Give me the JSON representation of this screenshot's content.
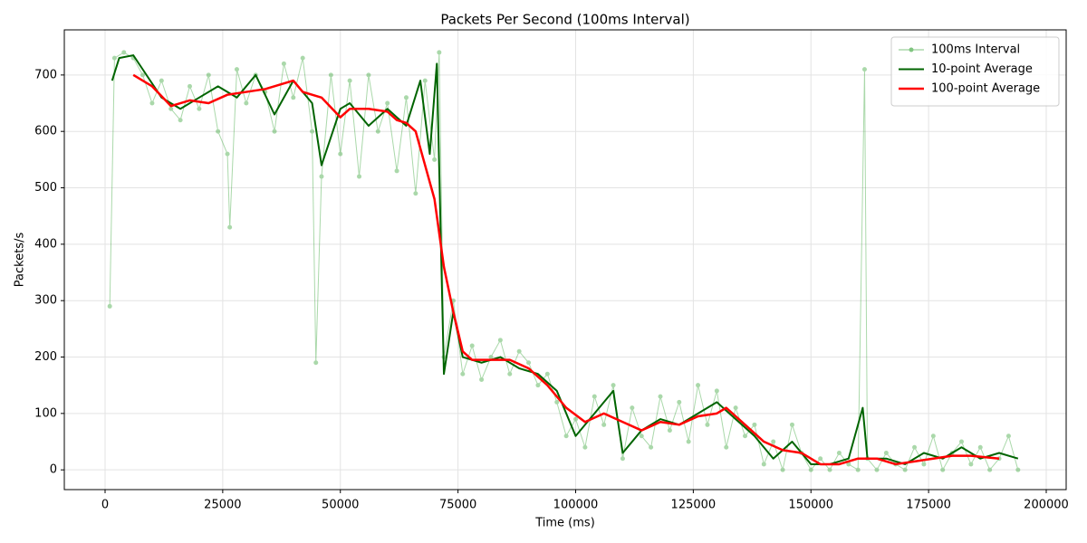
{
  "chart_data": {
    "type": "line",
    "title": "Packets Per Second (100ms Interval)",
    "x_label": "Time (ms)",
    "y_label": "Packets/s",
    "xlim": [
      -8660,
      204235
    ],
    "xticks": [
      0,
      25000,
      50000,
      75000,
      100000,
      125000,
      150000,
      175000,
      200000
    ],
    "ylim": [
      -35,
      780
    ],
    "yticks": [
      0,
      100,
      200,
      300,
      400,
      500,
      600,
      700
    ],
    "grid": true,
    "legend": "upper-right",
    "series": [
      {
        "name": "100ms Interval",
        "color": "#2ca02c",
        "alpha": 0.4,
        "linewidth": 1,
        "marker": true,
        "x": [
          1000,
          2000,
          4000,
          6000,
          8000,
          10000,
          12000,
          14000,
          16000,
          18000,
          20000,
          22000,
          24000,
          26000,
          26500,
          28000,
          30000,
          32000,
          34000,
          36000,
          38000,
          40000,
          42000,
          44000,
          44800,
          46000,
          48000,
          50000,
          52000,
          54000,
          56000,
          58000,
          60000,
          62000,
          64000,
          66000,
          68000,
          70000,
          71000,
          72000,
          74000,
          76000,
          78000,
          80000,
          82000,
          84000,
          86000,
          88000,
          90000,
          92000,
          94000,
          96000,
          98000,
          100000,
          102000,
          104000,
          106000,
          108000,
          110000,
          112000,
          114000,
          116000,
          118000,
          120000,
          122000,
          124000,
          126000,
          128000,
          130000,
          132000,
          134000,
          136000,
          138000,
          140000,
          142000,
          144000,
          146000,
          148000,
          150000,
          152000,
          154000,
          156000,
          158000,
          160000,
          161400,
          162000,
          164000,
          166000,
          168000,
          170000,
          172000,
          174000,
          176000,
          178000,
          180000,
          182000,
          184000,
          186000,
          188000,
          190000,
          192000,
          194000
        ],
        "values": [
          290,
          730,
          740,
          730,
          700,
          650,
          690,
          640,
          620,
          680,
          640,
          700,
          600,
          560,
          430,
          710,
          650,
          700,
          670,
          600,
          720,
          660,
          730,
          600,
          190,
          520,
          700,
          560,
          690,
          520,
          700,
          600,
          650,
          530,
          660,
          490,
          690,
          550,
          740,
          200,
          300,
          170,
          220,
          160,
          200,
          230,
          170,
          210,
          190,
          150,
          170,
          120,
          60,
          90,
          40,
          130,
          80,
          150,
          20,
          110,
          60,
          40,
          130,
          70,
          120,
          50,
          150,
          80,
          140,
          40,
          110,
          60,
          80,
          10,
          50,
          0,
          80,
          30,
          0,
          20,
          0,
          30,
          10,
          0,
          710,
          20,
          0,
          30,
          10,
          0,
          40,
          10,
          60,
          0,
          30,
          50,
          10,
          40,
          0,
          20,
          60,
          0
        ]
      },
      {
        "name": "10-point Average",
        "color": "#006400",
        "alpha": 1,
        "linewidth": 2,
        "marker": false,
        "x": [
          1500,
          3000,
          6000,
          8000,
          12000,
          16000,
          20000,
          24000,
          28000,
          32000,
          36000,
          40000,
          44000,
          46000,
          50000,
          52000,
          56000,
          60000,
          64000,
          67000,
          69000,
          70500,
          72000,
          74000,
          76000,
          80000,
          84000,
          88000,
          92000,
          96000,
          100000,
          104000,
          108000,
          110000,
          114000,
          118000,
          122000,
          126000,
          130000,
          134000,
          138000,
          142000,
          146000,
          150000,
          154000,
          158000,
          161000,
          162000,
          166000,
          170000,
          174000,
          178000,
          182000,
          186000,
          190000,
          194000
        ],
        "values": [
          690,
          730,
          735,
          710,
          660,
          640,
          660,
          680,
          660,
          700,
          630,
          690,
          650,
          540,
          640,
          650,
          610,
          640,
          610,
          690,
          560,
          720,
          170,
          280,
          200,
          190,
          200,
          180,
          170,
          140,
          60,
          100,
          140,
          30,
          70,
          90,
          80,
          100,
          120,
          90,
          60,
          20,
          50,
          10,
          10,
          20,
          110,
          20,
          20,
          10,
          30,
          20,
          40,
          20,
          30,
          20
        ]
      },
      {
        "name": "100-point Average",
        "color": "#ff0000",
        "alpha": 1,
        "linewidth": 2.5,
        "marker": false,
        "x": [
          6000,
          10000,
          14000,
          18000,
          22000,
          26000,
          30000,
          34000,
          38000,
          40000,
          42000,
          46000,
          50000,
          52000,
          56000,
          60000,
          62000,
          64000,
          66000,
          68000,
          70000,
          72000,
          74000,
          76000,
          78000,
          82000,
          86000,
          90000,
          94000,
          98000,
          102000,
          106000,
          110000,
          114000,
          118000,
          122000,
          126000,
          130000,
          132000,
          136000,
          140000,
          144000,
          148000,
          152000,
          156000,
          160000,
          164000,
          168000,
          172000,
          176000,
          180000,
          184000,
          190000
        ],
        "values": [
          700,
          680,
          645,
          655,
          650,
          665,
          670,
          675,
          685,
          690,
          670,
          660,
          625,
          640,
          640,
          635,
          620,
          615,
          600,
          540,
          480,
          360,
          280,
          210,
          195,
          195,
          195,
          180,
          150,
          110,
          85,
          100,
          85,
          70,
          85,
          80,
          95,
          100,
          110,
          80,
          50,
          35,
          30,
          10,
          10,
          20,
          20,
          10,
          15,
          20,
          25,
          25,
          20
        ]
      }
    ]
  }
}
